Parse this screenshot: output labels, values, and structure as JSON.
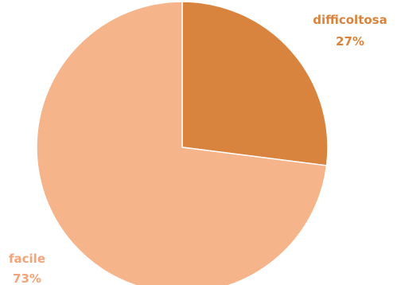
{
  "chart_data": {
    "type": "pie",
    "title": "",
    "slices": [
      {
        "label": "difficoltosa",
        "value": 27,
        "value_label": "27%",
        "color": "#D9843E",
        "label_color": "#D9843E"
      },
      {
        "label": "facile",
        "value": 73,
        "value_label": "73%",
        "color": "#F6B48B",
        "label_color": "#F4A47A"
      }
    ],
    "start_angle": "12 o'clock",
    "direction": "clockwise",
    "legend": "none",
    "slice_separator_color": "#ffffff"
  }
}
